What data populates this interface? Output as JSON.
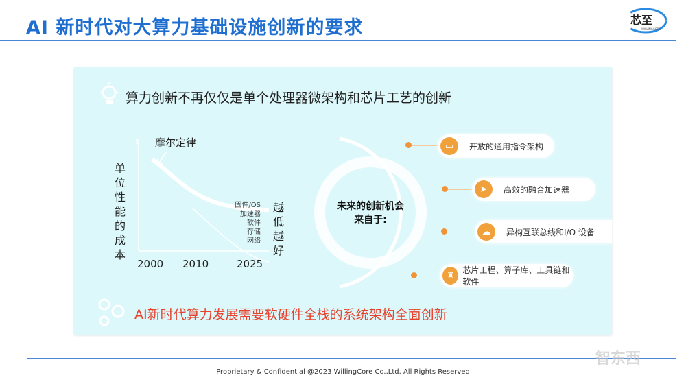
{
  "header": {
    "title": "AI 新时代对大算力基础设施创新的要求",
    "logo_text": "芯至",
    "logo_sub": "WILLINGCORE"
  },
  "panel": {
    "subtitle": "算力创新不再仅仅是单个处理器微架构和芯片工艺的创新",
    "chart": {
      "curve_label": "摩尔定律",
      "y_symbol": "$",
      "y_label": [
        "单",
        "位",
        "性",
        "能",
        "的",
        "成",
        "本"
      ],
      "x_ticks": [
        "2000",
        "2010",
        "2025"
      ],
      "lower_curve_labels": [
        "固件/OS",
        "加速器",
        "软件",
        "存储",
        "网络"
      ],
      "right_label": [
        "越",
        "低",
        "越",
        "好"
      ]
    },
    "center_text": [
      "未来的创新机会",
      "来自于:"
    ],
    "items": [
      {
        "label": "开放的通用指令架构",
        "icon": "laptop-icon"
      },
      {
        "label": "高效的融合加速器",
        "icon": "paper-plane-icon"
      },
      {
        "label": "异构互联总线和I/O 设备",
        "icon": "cloud-computer-icon"
      },
      {
        "label": "芯片工程、算子库、工具链和软件",
        "icon": "robot-icon"
      }
    ],
    "accent_color": "#f0a13c",
    "bottom_statement": "AI新时代算力发展需要软硬件全栈的系统架构全面创新"
  },
  "footer": {
    "text": "Proprietary & Confidential @2023 WillingCore Co.,Ltd. All Rights Reserved",
    "watermark": "智东西"
  }
}
